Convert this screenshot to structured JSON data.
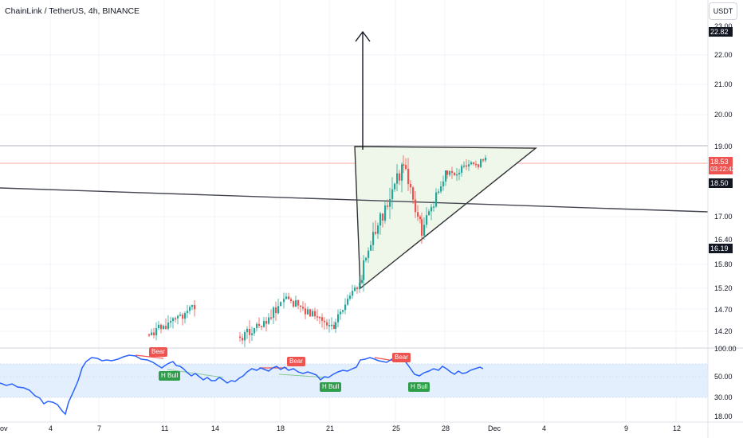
{
  "header": {
    "title": "ChainLink / TetherUS, 4h, BINANCE",
    "currency": "USDT"
  },
  "price_axis": {
    "labels": [
      "23.00",
      "22.00",
      "21.00",
      "20.00",
      "19.00",
      "17.00",
      "16.40",
      "15.80",
      "15.20",
      "14.70",
      "14.20"
    ],
    "tags": {
      "target": "22.82",
      "current": "18.53",
      "countdown": "03:22:42",
      "level": "18.50",
      "low": "16.19"
    }
  },
  "rsi_axis": {
    "labels": [
      "100.00",
      "50.00",
      "30.00",
      "18.00"
    ]
  },
  "time_axis": {
    "labels": [
      "ov",
      "4",
      "7",
      "11",
      "14",
      "18",
      "21",
      "25",
      "28",
      "Dec",
      "4",
      "9",
      "12"
    ]
  },
  "indicator_labels": {
    "bear_1": "Bear",
    "bear_2": "Bear",
    "bear_3": "Bear",
    "bull_1": "H Bull",
    "bull_2": "H Bull",
    "bull_3": "H Bull"
  },
  "colors": {
    "up": "#26a69a",
    "down": "#ef5350",
    "rsi_line": "#2962ff",
    "rsi_band": "#e3effd",
    "triangle_fill": "#eef7ea",
    "bear_badge": "#ef5350",
    "bull_badge": "#2e9e4a",
    "current_tag": "#ef5350",
    "dark_tag": "#131722"
  },
  "icons": {
    "target_arrow": "arrow-up-icon"
  }
}
